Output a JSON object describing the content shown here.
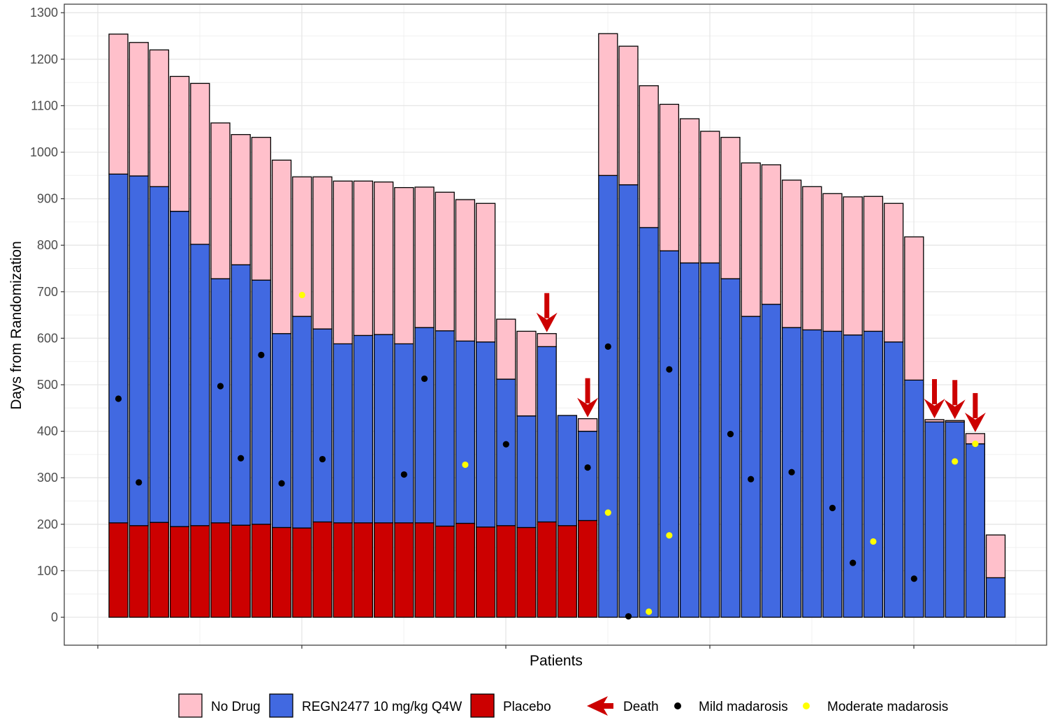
{
  "chart_data": {
    "type": "bar",
    "stacked": true,
    "xlabel": "Patients",
    "ylabel": "Days from Randomization",
    "ylim": [
      -60,
      1320
    ],
    "yticks": [
      0,
      100,
      200,
      300,
      400,
      500,
      600,
      700,
      800,
      900,
      1000,
      1100,
      1200,
      1300
    ],
    "grid": true,
    "legend_position": "bottom",
    "colors": {
      "no_drug": "#FFC0CB",
      "regn": "#4169E1",
      "placebo": "#CC0000",
      "death": "#CC0000",
      "mild": "#000000",
      "moderate": "#FFFF00"
    },
    "legend": [
      {
        "key": "no_drug",
        "label": "No Drug",
        "kind": "fill"
      },
      {
        "key": "regn",
        "label": "REGN2477 10 mg/kg Q4W",
        "kind": "fill"
      },
      {
        "key": "placebo",
        "label": "Placebo",
        "kind": "fill"
      },
      {
        "key": "death",
        "label": "Death",
        "kind": "arrow"
      },
      {
        "key": "mild",
        "label": "Mild madarosis",
        "kind": "dot"
      },
      {
        "key": "moderate",
        "label": "Moderate madarosis",
        "kind": "dot"
      }
    ],
    "patients": [
      {
        "placebo": 203,
        "regn": 750,
        "no_drug": 301,
        "mild": 470,
        "moderate": null,
        "death": false
      },
      {
        "placebo": 197,
        "regn": 752,
        "no_drug": 287,
        "mild": 290,
        "moderate": null,
        "death": false
      },
      {
        "placebo": 204,
        "regn": 722,
        "no_drug": 294,
        "mild": null,
        "moderate": null,
        "death": false
      },
      {
        "placebo": 195,
        "regn": 678,
        "no_drug": 290,
        "mild": null,
        "moderate": null,
        "death": false
      },
      {
        "placebo": 197,
        "regn": 605,
        "no_drug": 346,
        "mild": null,
        "moderate": null,
        "death": false
      },
      {
        "placebo": 203,
        "regn": 525,
        "no_drug": 335,
        "mild": 497,
        "moderate": null,
        "death": false
      },
      {
        "placebo": 198,
        "regn": 560,
        "no_drug": 280,
        "mild": 342,
        "moderate": null,
        "death": false
      },
      {
        "placebo": 200,
        "regn": 525,
        "no_drug": 307,
        "mild": 564,
        "moderate": null,
        "death": false
      },
      {
        "placebo": 193,
        "regn": 417,
        "no_drug": 373,
        "mild": 288,
        "moderate": null,
        "death": false
      },
      {
        "placebo": 192,
        "regn": 455,
        "no_drug": 300,
        "mild": null,
        "moderate": 693,
        "death": false
      },
      {
        "placebo": 205,
        "regn": 415,
        "no_drug": 327,
        "mild": 340,
        "moderate": null,
        "death": false
      },
      {
        "placebo": 203,
        "regn": 385,
        "no_drug": 350,
        "mild": null,
        "moderate": null,
        "death": false
      },
      {
        "placebo": 203,
        "regn": 403,
        "no_drug": 332,
        "mild": null,
        "moderate": null,
        "death": false
      },
      {
        "placebo": 203,
        "regn": 405,
        "no_drug": 328,
        "mild": null,
        "moderate": null,
        "death": false
      },
      {
        "placebo": 203,
        "regn": 385,
        "no_drug": 336,
        "mild": 307,
        "moderate": null,
        "death": false
      },
      {
        "placebo": 203,
        "regn": 420,
        "no_drug": 302,
        "mild": 513,
        "moderate": null,
        "death": false
      },
      {
        "placebo": 196,
        "regn": 420,
        "no_drug": 298,
        "mild": null,
        "moderate": null,
        "death": false
      },
      {
        "placebo": 202,
        "regn": 392,
        "no_drug": 304,
        "mild": null,
        "moderate": 328,
        "death": false
      },
      {
        "placebo": 194,
        "regn": 398,
        "no_drug": 298,
        "mild": null,
        "moderate": null,
        "death": false
      },
      {
        "placebo": 197,
        "regn": 315,
        "no_drug": 129,
        "mild": 372,
        "moderate": null,
        "death": false
      },
      {
        "placebo": 193,
        "regn": 240,
        "no_drug": 182,
        "mild": null,
        "moderate": null,
        "death": false
      },
      {
        "placebo": 205,
        "regn": 377,
        "no_drug": 28,
        "mild": null,
        "moderate": null,
        "death": true
      },
      {
        "placebo": 197,
        "regn": 237,
        "no_drug": 0,
        "mild": null,
        "moderate": null,
        "death": false
      },
      {
        "placebo": 208,
        "regn": 192,
        "no_drug": 27,
        "mild": 322,
        "moderate": null,
        "death": true
      },
      {
        "placebo": 0,
        "regn": 950,
        "no_drug": 305,
        "mild": 582,
        "moderate": 225,
        "death": false
      },
      {
        "placebo": 0,
        "regn": 930,
        "no_drug": 298,
        "mild": 2,
        "moderate": null,
        "death": false
      },
      {
        "placebo": 0,
        "regn": 838,
        "no_drug": 305,
        "mild": null,
        "moderate": 12,
        "death": false
      },
      {
        "placebo": 0,
        "regn": 788,
        "no_drug": 315,
        "mild": 533,
        "moderate": 176,
        "death": false
      },
      {
        "placebo": 0,
        "regn": 762,
        "no_drug": 310,
        "mild": null,
        "moderate": null,
        "death": false
      },
      {
        "placebo": 0,
        "regn": 762,
        "no_drug": 283,
        "mild": null,
        "moderate": null,
        "death": false
      },
      {
        "placebo": 0,
        "regn": 728,
        "no_drug": 304,
        "mild": 394,
        "moderate": null,
        "death": false
      },
      {
        "placebo": 0,
        "regn": 647,
        "no_drug": 330,
        "mild": 297,
        "moderate": null,
        "death": false
      },
      {
        "placebo": 0,
        "regn": 673,
        "no_drug": 300,
        "mild": null,
        "moderate": null,
        "death": false
      },
      {
        "placebo": 0,
        "regn": 623,
        "no_drug": 317,
        "mild": 312,
        "moderate": null,
        "death": false
      },
      {
        "placebo": 0,
        "regn": 618,
        "no_drug": 308,
        "mild": null,
        "moderate": null,
        "death": false
      },
      {
        "placebo": 0,
        "regn": 615,
        "no_drug": 296,
        "mild": 235,
        "moderate": null,
        "death": false
      },
      {
        "placebo": 0,
        "regn": 607,
        "no_drug": 297,
        "mild": 117,
        "moderate": null,
        "death": false
      },
      {
        "placebo": 0,
        "regn": 615,
        "no_drug": 290,
        "mild": null,
        "moderate": 163,
        "death": false
      },
      {
        "placebo": 0,
        "regn": 592,
        "no_drug": 298,
        "mild": null,
        "moderate": null,
        "death": false
      },
      {
        "placebo": 0,
        "regn": 510,
        "no_drug": 308,
        "mild": 83,
        "moderate": null,
        "death": false
      },
      {
        "placebo": 0,
        "regn": 420,
        "no_drug": 5,
        "mild": null,
        "moderate": null,
        "death": true
      },
      {
        "placebo": 0,
        "regn": 420,
        "no_drug": 3,
        "mild": null,
        "moderate": 335,
        "death": true
      },
      {
        "placebo": 0,
        "regn": 373,
        "no_drug": 22,
        "mild": null,
        "moderate": 373,
        "death": true
      },
      {
        "placebo": 0,
        "regn": 85,
        "no_drug": 92,
        "mild": null,
        "moderate": null,
        "death": false
      }
    ]
  }
}
